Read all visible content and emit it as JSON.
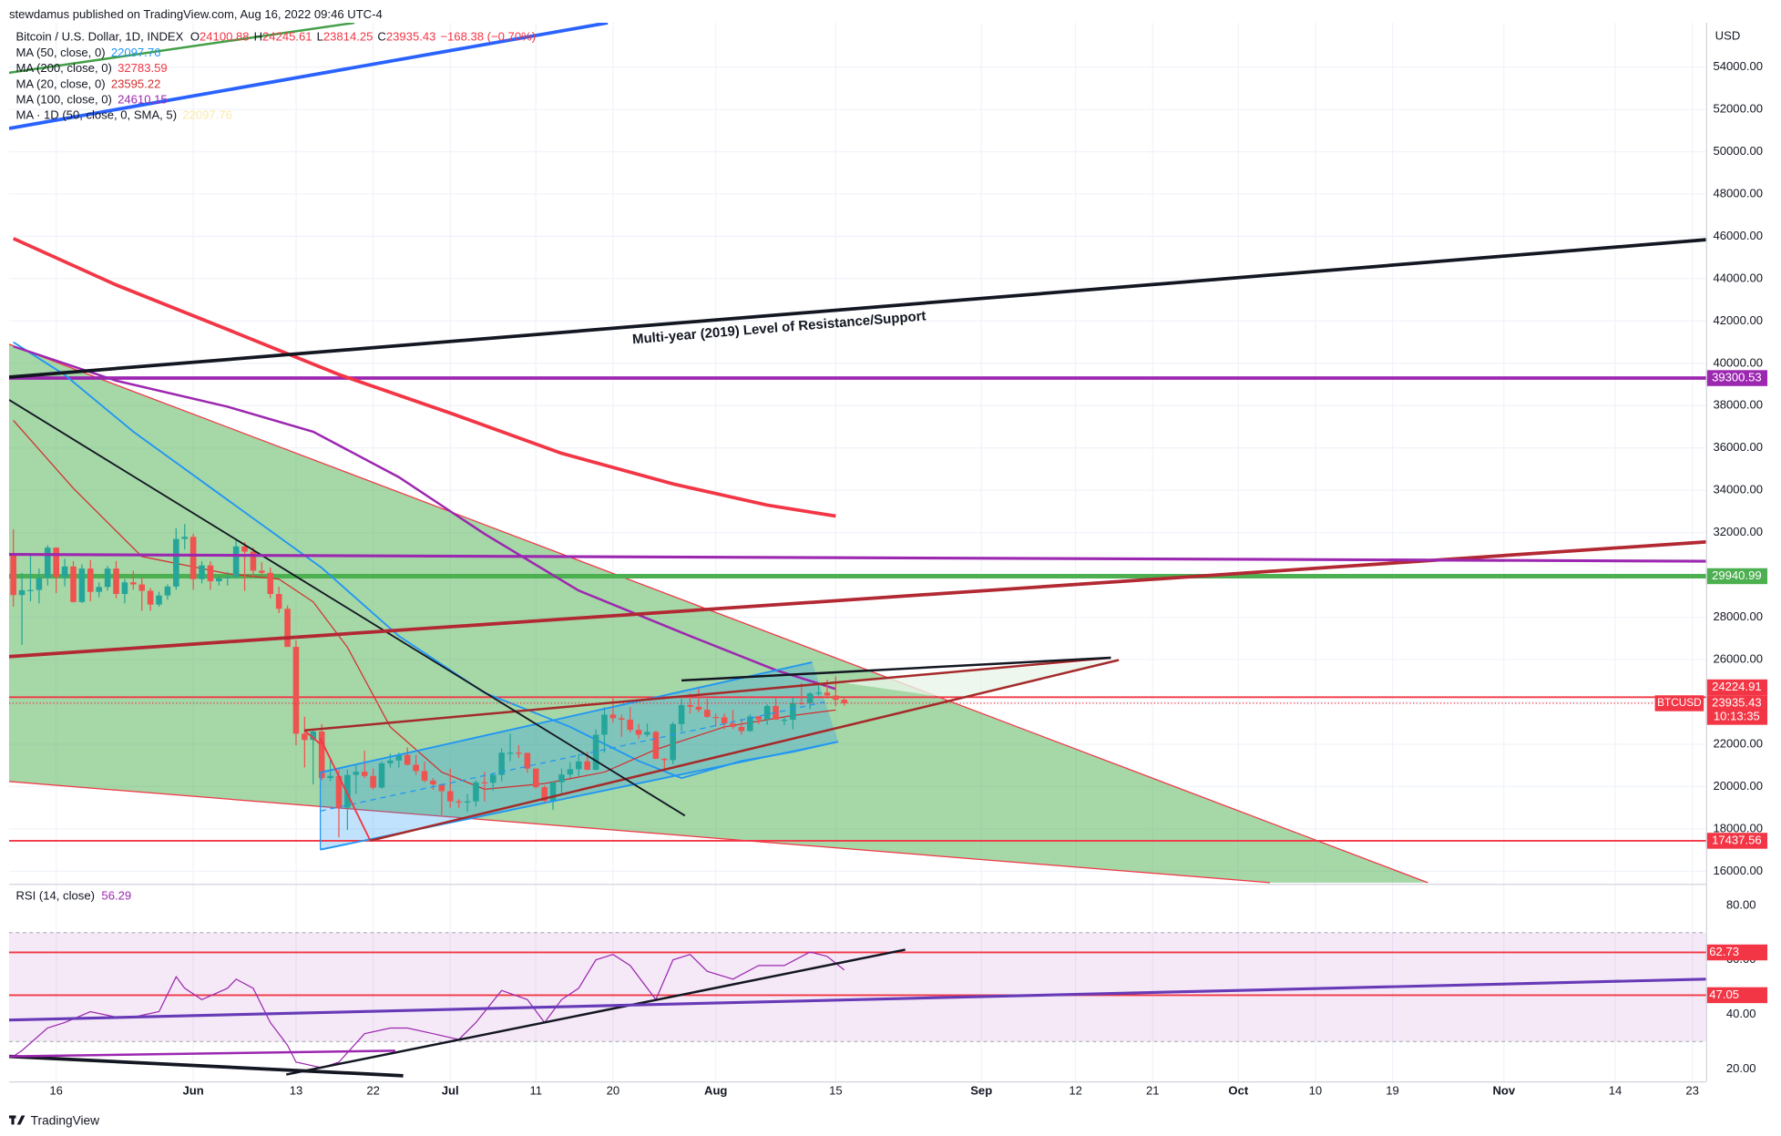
{
  "header": {
    "publisher": "stewdamus published on TradingView.com, Aug 16, 2022 09:46 UTC-4",
    "symbol": "Bitcoin / U.S. Dollar, 1D, INDEX",
    "ohlc": [
      {
        "label": "O",
        "value": 24100.88
      },
      {
        "label": "H",
        "value": 24245.61
      },
      {
        "label": "L",
        "value": 23814.25
      },
      {
        "label": "C",
        "value": 23935.43
      }
    ],
    "change": "−168.38 (−0.70%)"
  },
  "chart_data": {
    "type": "candlestick",
    "currency": "USD",
    "up_color": "#26a69a",
    "down_color": "#ef5350",
    "grid": true,
    "xlim": [
      -0.5,
      197.6
    ],
    "xticks": [
      {
        "value": 5,
        "label": "16"
      },
      {
        "value": 21,
        "label": "Jun"
      },
      {
        "value": 33,
        "label": "13"
      },
      {
        "value": 42,
        "label": "22"
      },
      {
        "value": 51,
        "label": "Jul"
      },
      {
        "value": 61,
        "label": "11"
      },
      {
        "value": 70,
        "label": "20"
      },
      {
        "value": 82,
        "label": "Aug"
      },
      {
        "value": 96,
        "label": "15"
      },
      {
        "value": 113,
        "label": "Sep"
      },
      {
        "value": 124,
        "label": "12"
      },
      {
        "value": 133,
        "label": "21"
      },
      {
        "value": 143,
        "label": "Oct"
      },
      {
        "value": 152,
        "label": "10"
      },
      {
        "value": 161,
        "label": "19"
      },
      {
        "value": 174,
        "label": "Nov"
      },
      {
        "value": 187,
        "label": "14"
      },
      {
        "value": 196,
        "label": "23"
      }
    ],
    "ylim": [
      15460,
      56090
    ],
    "yticks": [
      {
        "value": 16000,
        "label": "16000.00"
      },
      {
        "value": 18000,
        "label": "18000.00"
      },
      {
        "value": 20000,
        "label": "20000.00"
      },
      {
        "value": 22000,
        "label": "22000.00"
      },
      {
        "value": 24000,
        "label": "24000.00"
      },
      {
        "value": 26000,
        "label": "26000.00"
      },
      {
        "value": 28000,
        "label": "28000.00"
      },
      {
        "value": 30000,
        "label": "30000.00"
      },
      {
        "value": 32000,
        "label": "32000.00"
      },
      {
        "value": 34000,
        "label": "34000.00"
      },
      {
        "value": 36000,
        "label": "36000.00"
      },
      {
        "value": 38000,
        "label": "38000.00"
      },
      {
        "value": 40000,
        "label": "40000.00"
      },
      {
        "value": 42000,
        "label": "42000.00"
      },
      {
        "value": 44000,
        "label": "44000.00"
      },
      {
        "value": 46000,
        "label": "46000.00"
      },
      {
        "value": 48000,
        "label": "48000.00"
      },
      {
        "value": 50000,
        "label": "50000.00"
      },
      {
        "value": 52000,
        "label": "52000.00"
      },
      {
        "value": 54000,
        "label": "54000.00"
      }
    ],
    "candles": [
      [
        31000,
        32150,
        28500,
        29050
      ],
      [
        29050,
        30100,
        26700,
        29280
      ],
      [
        29280,
        31000,
        28750,
        29290
      ],
      [
        29290,
        30300,
        28650,
        29860
      ],
      [
        29860,
        31400,
        29500,
        31290
      ],
      [
        31290,
        31300,
        29150,
        29900
      ],
      [
        29900,
        30760,
        29460,
        30400
      ],
      [
        30400,
        30650,
        28700,
        28720
      ],
      [
        28720,
        30500,
        28680,
        30300
      ],
      [
        30300,
        30700,
        28750,
        29200
      ],
      [
        29200,
        29650,
        28950,
        29430
      ],
      [
        29430,
        30430,
        29260,
        30300
      ],
      [
        30300,
        30660,
        28900,
        29100
      ],
      [
        29100,
        29800,
        28660,
        29650
      ],
      [
        29650,
        30200,
        29300,
        29550
      ],
      [
        29550,
        29850,
        28300,
        29250
      ],
      [
        29250,
        29380,
        28300,
        28600
      ],
      [
        28600,
        29200,
        28500,
        29030
      ],
      [
        29030,
        29550,
        28830,
        29450
      ],
      [
        29450,
        32200,
        29300,
        31700
      ],
      [
        31700,
        32400,
        31200,
        31800
      ],
      [
        31800,
        31950,
        29300,
        29800
      ],
      [
        29800,
        30650,
        29600,
        30450
      ],
      [
        30450,
        30650,
        29300,
        29700
      ],
      [
        29700,
        29950,
        29500,
        29850
      ],
      [
        29850,
        30150,
        29500,
        29900
      ],
      [
        29900,
        31700,
        29880,
        31350
      ],
      [
        31350,
        31550,
        29250,
        31100
      ],
      [
        31100,
        31300,
        29900,
        30200
      ],
      [
        30200,
        30600,
        29950,
        30100
      ],
      [
        30100,
        30350,
        28900,
        29100
      ],
      [
        29100,
        29450,
        28200,
        28400
      ],
      [
        28400,
        28550,
        26600,
        26600
      ],
      [
        26600,
        26900,
        21950,
        22500
      ],
      [
        22500,
        23300,
        20900,
        22200
      ],
      [
        22200,
        22700,
        20100,
        22600
      ],
      [
        22600,
        22950,
        20300,
        20400
      ],
      [
        20400,
        21350,
        20250,
        20500
      ],
      [
        20500,
        20800,
        17600,
        19000
      ],
      [
        19000,
        20800,
        17950,
        20550
      ],
      [
        20550,
        21000,
        19650,
        20700
      ],
      [
        20700,
        21700,
        20400,
        20500
      ],
      [
        20500,
        20850,
        19850,
        19950
      ],
      [
        19950,
        21200,
        19900,
        21100
      ],
      [
        21100,
        21550,
        20900,
        21230
      ],
      [
        21230,
        21600,
        20900,
        21500
      ],
      [
        21500,
        21850,
        21000,
        21030
      ],
      [
        21030,
        21500,
        20550,
        20730
      ],
      [
        20730,
        21180,
        20200,
        20280
      ],
      [
        20280,
        20400,
        19850,
        20100
      ],
      [
        20100,
        20150,
        18650,
        19780
      ],
      [
        19780,
        20850,
        19000,
        19300
      ],
      [
        19300,
        19400,
        19000,
        19250
      ],
      [
        19250,
        19650,
        18800,
        19300
      ],
      [
        19300,
        20300,
        19050,
        20200
      ],
      [
        20200,
        20700,
        19300,
        20180
      ],
      [
        20180,
        20650,
        19800,
        20550
      ],
      [
        20550,
        21800,
        20250,
        21600
      ],
      [
        21600,
        22500,
        21200,
        21600
      ],
      [
        21600,
        21950,
        21350,
        21590
      ],
      [
        21590,
        21600,
        20650,
        20850
      ],
      [
        20850,
        20850,
        19900,
        19970
      ],
      [
        19970,
        20050,
        19250,
        19320
      ],
      [
        19320,
        20250,
        18900,
        20200
      ],
      [
        20200,
        20850,
        19650,
        20570
      ],
      [
        20570,
        21150,
        20400,
        20820
      ],
      [
        20820,
        21550,
        20500,
        21190
      ],
      [
        21190,
        21650,
        20780,
        20790
      ],
      [
        20790,
        22700,
        20770,
        22450
      ],
      [
        22450,
        23750,
        21600,
        23400
      ],
      [
        23400,
        24250,
        23000,
        23230
      ],
      [
        23230,
        23400,
        22350,
        23160
      ],
      [
        23160,
        23750,
        22550,
        22680
      ],
      [
        22680,
        22950,
        22250,
        22450
      ],
      [
        22450,
        22980,
        22350,
        22580
      ],
      [
        22580,
        22650,
        21300,
        21310
      ],
      [
        21310,
        21350,
        20750,
        21250
      ],
      [
        21250,
        23050,
        21050,
        22950
      ],
      [
        22950,
        24150,
        22600,
        23850
      ],
      [
        23850,
        24400,
        23450,
        23770
      ],
      [
        23770,
        24650,
        23500,
        23630
      ],
      [
        23630,
        24150,
        23250,
        23290
      ],
      [
        23290,
        23450,
        22850,
        23270
      ],
      [
        23270,
        23450,
        22700,
        22980
      ],
      [
        22980,
        23620,
        22720,
        22820
      ],
      [
        22820,
        23200,
        22450,
        22620
      ],
      [
        22620,
        23420,
        22600,
        23310
      ],
      [
        23310,
        23350,
        22950,
        23170
      ],
      [
        23170,
        23900,
        22920,
        23810
      ],
      [
        23810,
        24200,
        23150,
        23160
      ],
      [
        23160,
        23250,
        22900,
        23160
      ],
      [
        23160,
        24200,
        22700,
        23950
      ],
      [
        23950,
        24900,
        23850,
        23930
      ],
      [
        23930,
        24450,
        23650,
        24400
      ],
      [
        24400,
        24850,
        24300,
        24440
      ],
      [
        24440,
        25050,
        24150,
        24300
      ],
      [
        24300,
        25200,
        23800,
        24100
      ],
      [
        24100.88,
        24245.61,
        23814.25,
        23935.43
      ]
    ],
    "series": [
      {
        "name": "MA (50, close, 0)",
        "last": 22097.76,
        "color": "#2196f3",
        "width": 1.5,
        "x": [
          0,
          6,
          14,
          25,
          36,
          45,
          55,
          65,
          73,
          78,
          85,
          91,
          96
        ],
        "values": [
          41000,
          39450,
          36770,
          33550,
          30330,
          27110,
          24430,
          22820,
          21210,
          20400,
          21210,
          21640,
          22098
        ]
      },
      {
        "name": "MA (200, close, 0)",
        "last": 32783.59,
        "color": "#f23645",
        "width": 3,
        "x": [
          0,
          12,
          25,
          38,
          51,
          64,
          77,
          88,
          96
        ],
        "values": [
          45900,
          43700,
          41600,
          39470,
          37650,
          35750,
          34300,
          33300,
          32780
        ]
      },
      {
        "name": "MA (20, close, 0)",
        "last": 23595.22,
        "color": "#d32f2f",
        "width": 1,
        "x": [
          0,
          7,
          15,
          25,
          31,
          35,
          39,
          44,
          50,
          55,
          62,
          69,
          75,
          83,
          91,
          96
        ],
        "values": [
          37300,
          34090,
          30870,
          30060,
          29800,
          28730,
          26580,
          22820,
          20680,
          19870,
          20140,
          20680,
          21750,
          22820,
          23360,
          23620
        ]
      },
      {
        "name": "MA (100, close, 0)",
        "last": 24610.15,
        "color": "#9c27b0",
        "width": 2,
        "x": [
          0,
          12,
          25,
          35,
          45,
          55,
          66,
          79,
          89,
          96
        ],
        "values": [
          40800,
          39180,
          37950,
          36770,
          34620,
          31940,
          29260,
          27110,
          25500,
          24610
        ]
      }
    ],
    "extra_legend": {
      "name": "MA · 1D (50, close, 0, SMA, 5)",
      "last": 22097.76,
      "color": "#fbe9a7"
    },
    "levels": [
      {
        "value": 39300.53,
        "color": "#9c27b0",
        "width": 3
      },
      {
        "value": 29940.99,
        "color": "#4caf50",
        "width": 4
      },
      {
        "value": 24224.91,
        "color": "#f23645",
        "width": 1.5
      },
      {
        "value": 17437.56,
        "color": "#f23645",
        "width": 1.5
      }
    ],
    "price_tag": {
      "name": "BTCUSD",
      "value": 23935.43,
      "countdown": "10:13:35",
      "color": "#f23645"
    },
    "annotation": "Multi-year (2019) Level of Resistance/Support",
    "rsi": {
      "title": "RSI (14, close)",
      "last": 56.29,
      "color": "#9c27b0",
      "ylim": [
        15.4,
        87.1
      ],
      "yticks": [
        {
          "value": 20,
          "label": "20.00"
        },
        {
          "value": 40,
          "label": "40.00"
        },
        {
          "value": 60,
          "label": "60.00"
        },
        {
          "value": 80,
          "label": "80.00"
        }
      ],
      "band": [
        30,
        70
      ],
      "levels": [
        {
          "value": 62.73,
          "color": "#f23645"
        },
        {
          "value": 47.05,
          "color": "#f23645"
        }
      ],
      "x": [
        0,
        1,
        4,
        6,
        9,
        12,
        14,
        17,
        19,
        20,
        22,
        25,
        26,
        28,
        30,
        32,
        33,
        36,
        38,
        41,
        44,
        46,
        49,
        52,
        54,
        57,
        60,
        62,
        64,
        66,
        68,
        70,
        72,
        75,
        77,
        79,
        81,
        84,
        87,
        90,
        93,
        95,
        97
      ],
      "values": [
        24.6,
        26.7,
        35,
        37,
        41,
        39,
        39,
        41,
        53.8,
        49.6,
        45.4,
        49.6,
        52.9,
        49.6,
        37,
        28.7,
        22.5,
        20.4,
        22.5,
        32.9,
        35,
        35,
        32.9,
        30.8,
        37,
        48.8,
        45.4,
        37,
        45.4,
        49.6,
        60,
        62,
        57.9,
        45.4,
        60,
        62,
        55.8,
        52.9,
        57.9,
        57.9,
        62.9,
        61.3,
        56.29
      ]
    }
  },
  "footer": {
    "brand": "TradingView"
  }
}
